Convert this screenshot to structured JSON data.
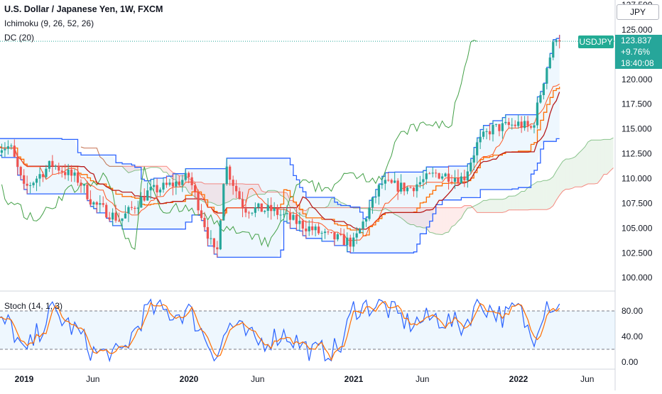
{
  "header": {
    "title": "U.S. Dollar / Japanese Yen, 1W, FXCM",
    "indicator_1": "Ichimoku (9, 26, 52, 26)",
    "indicator_2": "DC (20)",
    "currency": "JPY"
  },
  "price_tag": {
    "symbol": "USDJPY",
    "price": "123.837",
    "change": "+9.76%",
    "countdown": "18:40:08"
  },
  "price_axis": {
    "labels": [
      "127.500",
      "125.000",
      "122.500",
      "120.000",
      "117.500",
      "115.000",
      "112.500",
      "110.000",
      "107.500",
      "105.000",
      "102.500",
      "100.000"
    ],
    "values": [
      127.5,
      125.0,
      122.5,
      120.0,
      117.5,
      115.0,
      112.5,
      110.0,
      107.5,
      105.0,
      102.5,
      100.0
    ]
  },
  "time_axis": {
    "labels": [
      "2019",
      "Jun",
      "2020",
      "Jun",
      "2021",
      "Jun",
      "2022",
      "Jun"
    ],
    "bold": [
      true,
      false,
      true,
      false,
      true,
      false,
      true,
      false
    ]
  },
  "stoch_panel": {
    "label": "Stoch (14, 1, 3)",
    "axis_labels": [
      "80.00",
      "40.00",
      "0.00"
    ],
    "axis_values": [
      80,
      40,
      0
    ],
    "bands": [
      80,
      20
    ]
  },
  "colors": {
    "up": "#26a69a",
    "down": "#ef5350",
    "dc_band": "#2962ff",
    "lagging": "#43a047",
    "base": "#b71c1c",
    "conversion": "#ff5722",
    "k_line": "#2962ff",
    "d_line": "#ff6d00",
    "current_price": "#26a69a"
  },
  "chart_data": {
    "type": "candlestick",
    "symbol": "USDJPY",
    "interval": "1W",
    "ylim": [
      98.8,
      128.0
    ],
    "current_price": 123.837,
    "ohlc_approx": {
      "note_start": "2018-11",
      "anchors": [
        [
          "2018-12",
          113.2
        ],
        [
          "2019-01",
          108.9
        ],
        [
          "2019-03",
          111.5
        ],
        [
          "2019-05",
          109.8
        ],
        [
          "2019-06",
          107.5
        ],
        [
          "2019-08",
          105.8
        ],
        [
          "2019-10",
          108.6
        ],
        [
          "2019-12",
          109.5
        ],
        [
          "2020-01",
          110.2
        ],
        [
          "2020-03",
          101.8
        ],
        [
          "2020-03-20",
          111.5
        ],
        [
          "2020-05",
          107.0
        ],
        [
          "2020-07",
          106.8
        ],
        [
          "2020-09",
          105.5
        ],
        [
          "2020-11",
          104.2
        ],
        [
          "2021-01",
          103.5
        ],
        [
          "2021-03",
          109.5
        ],
        [
          "2021-05",
          109.0
        ],
        [
          "2021-07",
          110.5
        ],
        [
          "2021-09",
          110.0
        ],
        [
          "2021-10",
          113.5
        ],
        [
          "2021-11",
          115.0
        ],
        [
          "2022-01",
          115.5
        ],
        [
          "2022-02",
          115.0
        ],
        [
          "2022-03",
          121.0
        ],
        [
          "2022-03-28",
          125.0
        ],
        [
          "2022-04",
          123.837
        ]
      ]
    },
    "stochastic": {
      "k_anchors": [
        [
          "2018-12",
          60
        ],
        [
          "2019-01",
          10
        ],
        [
          "2019-03",
          80
        ],
        [
          "2019-05",
          45
        ],
        [
          "2019-06",
          15
        ],
        [
          "2019-08",
          10
        ],
        [
          "2019-10",
          85
        ],
        [
          "2019-12",
          75
        ],
        [
          "2020-01",
          80
        ],
        [
          "2020-03",
          10
        ],
        [
          "2020-04",
          60
        ],
        [
          "2020-06",
          30
        ],
        [
          "2020-08",
          45
        ],
        [
          "2020-10",
          15
        ],
        [
          "2020-12",
          20
        ],
        [
          "2021-01",
          85
        ],
        [
          "2021-03",
          90
        ],
        [
          "2021-05",
          60
        ],
        [
          "2021-07",
          70
        ],
        [
          "2021-09",
          55
        ],
        [
          "2021-10",
          95
        ],
        [
          "2021-12",
          70
        ],
        [
          "2022-01",
          85
        ],
        [
          "2022-02",
          35
        ],
        [
          "2022-03",
          95
        ],
        [
          "2022-04",
          85
        ]
      ]
    }
  }
}
